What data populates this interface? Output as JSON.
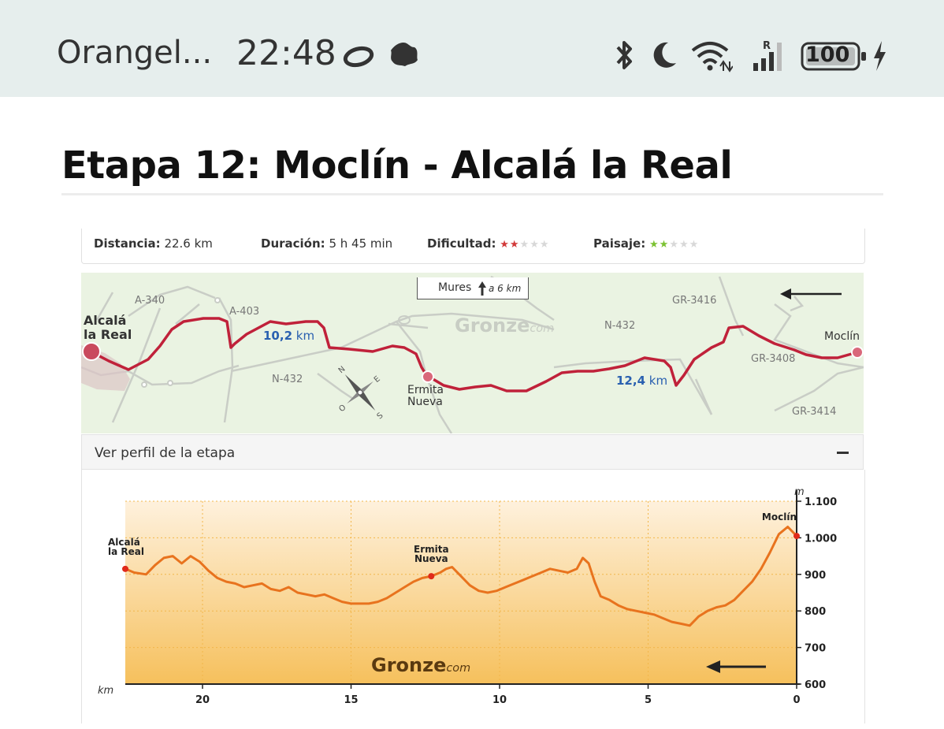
{
  "status_bar": {
    "carrier": "Orangel...",
    "time": "22:48",
    "battery": "100",
    "icons": [
      "o-ring-icon",
      "leaf-icon",
      "bluetooth-icon",
      "moon-icon",
      "wifi-icon",
      "signal-icon",
      "battery-icon",
      "charging-icon"
    ]
  },
  "page": {
    "title": "Etapa 12: Moclín - Alcalá la Real"
  },
  "stats": {
    "distance_label": "Distancia:",
    "distance_value": "22.6 km",
    "duration_label": "Duración:",
    "duration_value": "5 h 45 min",
    "difficulty_label": "Dificultad:",
    "difficulty_stars": 2,
    "landscape_label": "Paisaje:",
    "landscape_stars": 2,
    "max_stars": 5,
    "difficulty_color": "#d23a3a",
    "landscape_color": "#7cc232"
  },
  "map": {
    "start_town_line1": "Alcalá",
    "start_town_line2": "la Real",
    "end_town": "Moclín",
    "mid_town_line1": "Ermita",
    "mid_town_line2": "Nueva",
    "km_left_value": "10,2",
    "km_right_value": "12,4",
    "km_unit": "km",
    "mures_label": "Mures",
    "mures_distance": "a 6 km",
    "brand_main": "Gronze",
    "brand_sub": "com",
    "roads": [
      "A-340",
      "A-403",
      "N-432",
      "N-432",
      "GR-3416",
      "GR-3408",
      "GR-3414"
    ],
    "route_color": "#c0213a"
  },
  "profile": {
    "header_label": "Ver perfil de la etapa",
    "toggle_symbol": "−",
    "brand_main": "Gronze",
    "brand_sub": "com"
  },
  "chart_data": {
    "type": "area",
    "xlabel": "km",
    "ylabel": "m",
    "x_reversed": true,
    "xlim": [
      22.6,
      0
    ],
    "ylim": [
      600,
      1100
    ],
    "xticks": [
      20,
      15,
      10,
      5,
      0
    ],
    "yticks": [
      600,
      700,
      800,
      900,
      1000,
      1100
    ],
    "ytick_labels": [
      "600",
      "700",
      "800",
      "900",
      "1.000",
      "1.100"
    ],
    "grid": true,
    "line_color": "#e8731e",
    "series": [
      {
        "x": [
          22.6,
          22.3,
          21.9,
          21.6,
          21.3,
          21.0,
          20.7,
          20.4,
          20.1,
          19.8,
          19.5,
          19.2,
          18.9,
          18.6,
          18.3,
          18.0,
          17.7,
          17.4,
          17.1,
          16.8,
          16.5,
          16.2,
          15.9,
          15.6,
          15.3,
          15.0,
          14.7,
          14.4,
          14.1,
          13.8,
          13.5,
          13.2,
          12.9,
          12.6,
          12.3,
          12.0,
          11.8,
          11.6,
          11.3,
          11.0,
          10.7,
          10.4,
          10.1,
          9.8,
          9.5,
          9.2,
          8.9,
          8.6,
          8.3,
          8.0,
          7.7,
          7.4,
          7.2,
          7.0,
          6.8,
          6.6,
          6.3,
          6.0,
          5.7,
          5.4,
          5.1,
          4.8,
          4.5,
          4.2,
          3.9,
          3.6,
          3.3,
          3.0,
          2.7,
          2.4,
          2.1,
          1.8,
          1.5,
          1.2,
          0.9,
          0.6,
          0.3,
          0.0
        ],
        "y": [
          915,
          905,
          900,
          925,
          945,
          950,
          930,
          950,
          935,
          910,
          890,
          880,
          875,
          865,
          870,
          875,
          860,
          855,
          865,
          850,
          845,
          840,
          845,
          835,
          825,
          820,
          820,
          820,
          825,
          835,
          850,
          865,
          880,
          890,
          895,
          905,
          915,
          920,
          895,
          870,
          855,
          850,
          855,
          865,
          875,
          885,
          895,
          905,
          915,
          910,
          905,
          915,
          945,
          930,
          880,
          840,
          830,
          815,
          805,
          800,
          795,
          790,
          780,
          770,
          765,
          760,
          785,
          800,
          810,
          815,
          830,
          855,
          880,
          915,
          960,
          1010,
          1030,
          1005
        ]
      }
    ],
    "markers": [
      {
        "label_line1": "Alcalá",
        "label_line2": "la Real",
        "x": 22.6,
        "y": 915
      },
      {
        "label_line1": "Ermita",
        "label_line2": "Nueva",
        "x": 12.3,
        "y": 895
      },
      {
        "label_line1": "Moclín",
        "label_line2": "",
        "x": 0.0,
        "y": 1005
      }
    ]
  }
}
